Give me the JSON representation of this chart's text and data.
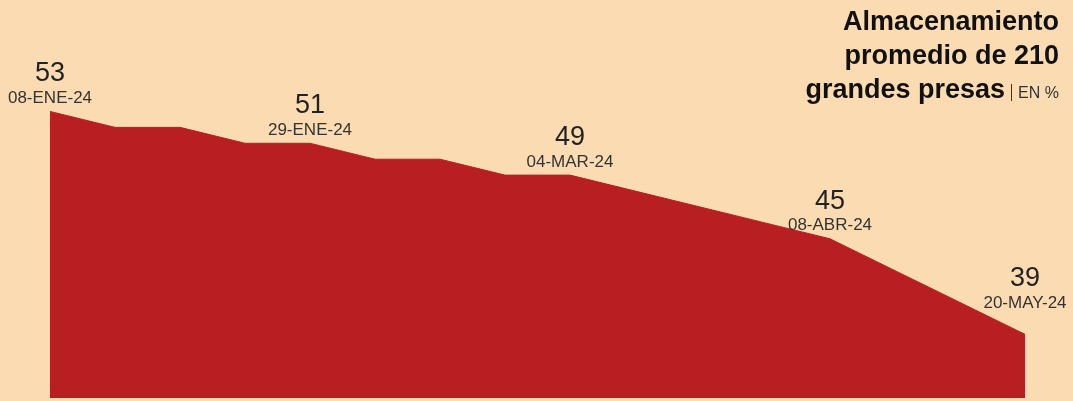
{
  "chart_data": {
    "type": "area",
    "title": "Almacenamiento promedio de 210 grandes presas",
    "subtitle": "EN %",
    "categories": [
      "08-ENE-24",
      null,
      null,
      null,
      "29-ENE-24",
      null,
      null,
      null,
      "04-MAR-24",
      null,
      null,
      null,
      "08-ABR-24",
      null,
      null,
      "20-MAY-24"
    ],
    "values": [
      53,
      52,
      52,
      51,
      51,
      50,
      50,
      49,
      49,
      48,
      47,
      46,
      45,
      43,
      41,
      39
    ],
    "value_labels": [
      "53",
      null,
      null,
      null,
      "51",
      null,
      null,
      null,
      "49",
      null,
      null,
      null,
      "45",
      null,
      null,
      "39"
    ],
    "color": "#b71f23",
    "tick_labels": false,
    "grid": false
  }
}
